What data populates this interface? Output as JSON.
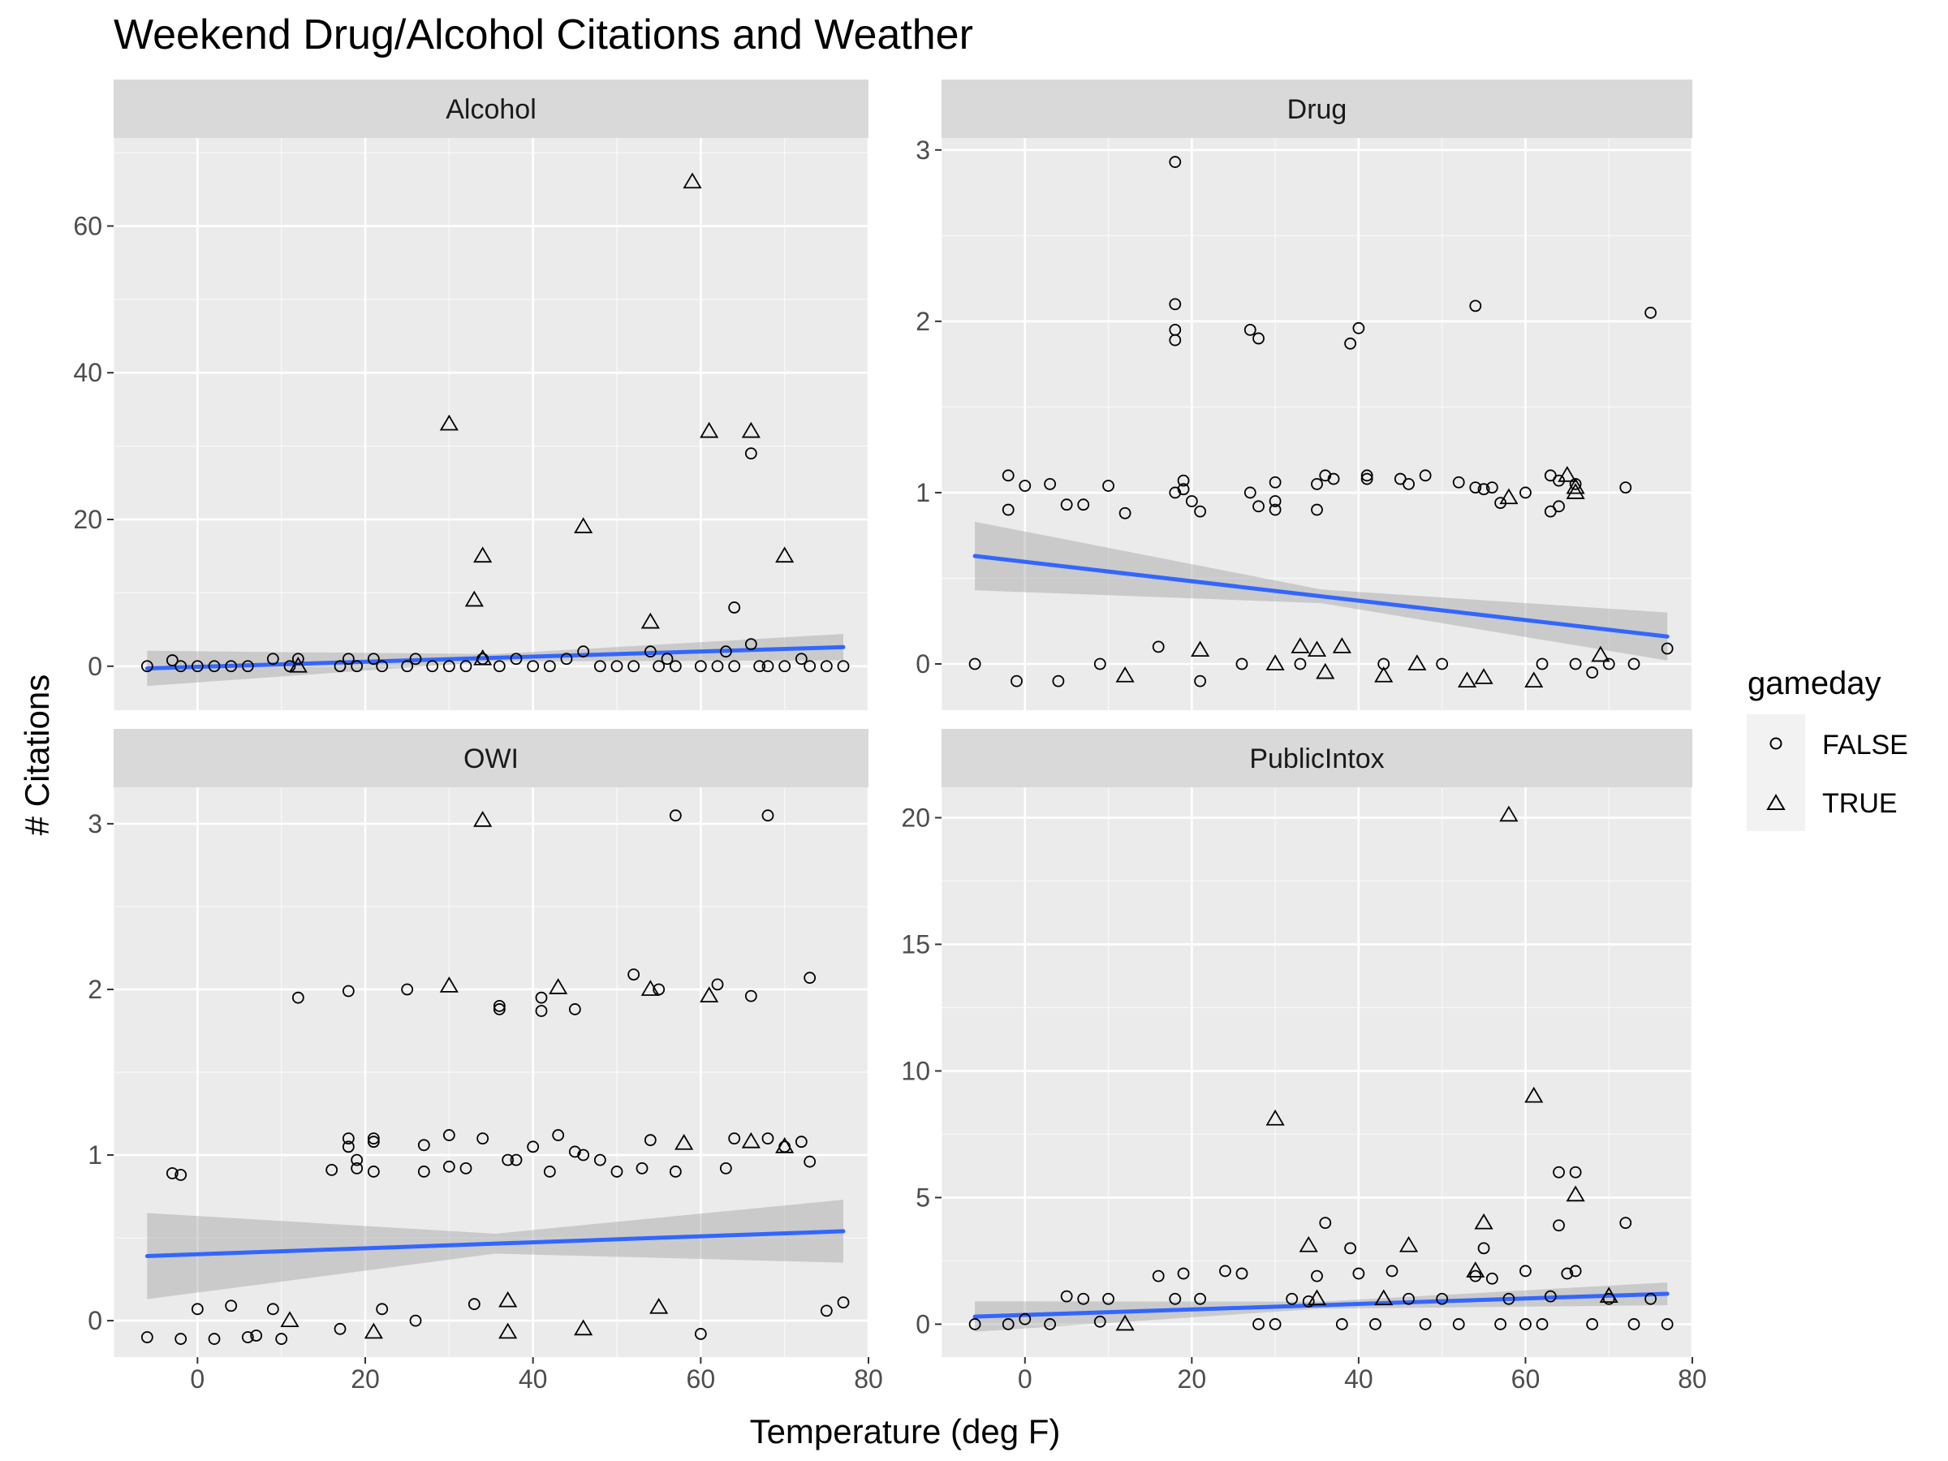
{
  "chart_data": {
    "type": "scatter",
    "title": "Weekend Drug/Alcohol Citations and Weather",
    "xlabel": "Temperature (deg F)",
    "ylabel": "# Citations",
    "xlim": [
      -10,
      80
    ],
    "x_ticks": [
      0,
      20,
      40,
      60,
      80
    ],
    "x_tick_labels": [
      "0",
      "20",
      "40",
      "60",
      "80"
    ],
    "legend": {
      "title": "gameday",
      "placement": "right",
      "entries": [
        {
          "label": "FALSE",
          "shape": "circle"
        },
        {
          "label": "TRUE",
          "shape": "triangle"
        }
      ]
    },
    "smooth_color": "#3366ff",
    "band_color": "#999999",
    "panel_background": "#ebebeb",
    "strip_background": "#d9d9d9",
    "facets": [
      {
        "label": "Alcohol",
        "ylim": [
          -6,
          72
        ],
        "y_ticks": [
          0,
          20,
          40,
          60
        ],
        "y_tick_labels": [
          "0",
          "20",
          "40",
          "60"
        ],
        "trend": {
          "x0": -6,
          "y0": -0.3,
          "x1": 77,
          "y1": 2.6,
          "band0": 2.4,
          "band1": 1.8,
          "band_mid": 0.5
        },
        "points_false": [
          [
            -6,
            0
          ],
          [
            -3,
            0.8
          ],
          [
            -2,
            0
          ],
          [
            0,
            0
          ],
          [
            2,
            0
          ],
          [
            4,
            0
          ],
          [
            6,
            0
          ],
          [
            9,
            1
          ],
          [
            11,
            0
          ],
          [
            12,
            1
          ],
          [
            17,
            0
          ],
          [
            18,
            1
          ],
          [
            19,
            0
          ],
          [
            21,
            1
          ],
          [
            22,
            0
          ],
          [
            25,
            0
          ],
          [
            26,
            1
          ],
          [
            28,
            0
          ],
          [
            30,
            0
          ],
          [
            32,
            0
          ],
          [
            34,
            1
          ],
          [
            36,
            0
          ],
          [
            38,
            1
          ],
          [
            40,
            0
          ],
          [
            42,
            0
          ],
          [
            44,
            1
          ],
          [
            46,
            2
          ],
          [
            48,
            0
          ],
          [
            50,
            0
          ],
          [
            52,
            0
          ],
          [
            54,
            2
          ],
          [
            55,
            0
          ],
          [
            56,
            1
          ],
          [
            57,
            0
          ],
          [
            60,
            0
          ],
          [
            62,
            0
          ],
          [
            63,
            2
          ],
          [
            64,
            0
          ],
          [
            64,
            8
          ],
          [
            66,
            29
          ],
          [
            66,
            3
          ],
          [
            67,
            0
          ],
          [
            68,
            0
          ],
          [
            70,
            0
          ],
          [
            72,
            1
          ],
          [
            73,
            0
          ],
          [
            75,
            0
          ],
          [
            77,
            0
          ]
        ],
        "points_true": [
          [
            12,
            0
          ],
          [
            30,
            33
          ],
          [
            33,
            9
          ],
          [
            34,
            15
          ],
          [
            34,
            1
          ],
          [
            46,
            19
          ],
          [
            54,
            6
          ],
          [
            59,
            66
          ],
          [
            61,
            32
          ],
          [
            66,
            32
          ],
          [
            70,
            15
          ]
        ]
      },
      {
        "label": "Drug",
        "ylim": [
          -0.27,
          3.07
        ],
        "y_ticks": [
          0,
          1,
          2,
          3
        ],
        "y_tick_labels": [
          "0",
          "1",
          "2",
          "3"
        ],
        "trend": {
          "x0": -6,
          "y0": 0.63,
          "x1": 77,
          "y1": 0.16,
          "band0": 0.2,
          "band1": 0.14,
          "band_mid": 0.04
        },
        "points_false": [
          [
            -6,
            0
          ],
          [
            -2,
            1.1
          ],
          [
            -2,
            0.9
          ],
          [
            -1,
            -0.1
          ],
          [
            0,
            1.04
          ],
          [
            3,
            1.05
          ],
          [
            4,
            -0.1
          ],
          [
            5,
            0.93
          ],
          [
            7,
            0.93
          ],
          [
            9,
            0
          ],
          [
            10,
            1.04
          ],
          [
            12,
            0.88
          ],
          [
            16,
            0.1
          ],
          [
            18,
            2.93
          ],
          [
            18,
            2.1
          ],
          [
            18,
            1.95
          ],
          [
            18,
            1.89
          ],
          [
            18,
            1.0
          ],
          [
            19,
            1.07
          ],
          [
            19,
            1.02
          ],
          [
            20,
            0.95
          ],
          [
            21,
            0.89
          ],
          [
            21,
            -0.1
          ],
          [
            26,
            0
          ],
          [
            27,
            1.95
          ],
          [
            27,
            1.0
          ],
          [
            28,
            1.9
          ],
          [
            28,
            0.92
          ],
          [
            30,
            1.06
          ],
          [
            30,
            0.95
          ],
          [
            30,
            0.9
          ],
          [
            33,
            0
          ],
          [
            35,
            1.05
          ],
          [
            35,
            0.9
          ],
          [
            36,
            1.1
          ],
          [
            37,
            1.08
          ],
          [
            39,
            1.87
          ],
          [
            40,
            1.96
          ],
          [
            41,
            1.1
          ],
          [
            41,
            1.08
          ],
          [
            43,
            0
          ],
          [
            45,
            1.08
          ],
          [
            46,
            1.05
          ],
          [
            48,
            1.1
          ],
          [
            50,
            0
          ],
          [
            52,
            1.06
          ],
          [
            54,
            2.09
          ],
          [
            54,
            1.03
          ],
          [
            55,
            1.02
          ],
          [
            56,
            1.03
          ],
          [
            57,
            0.94
          ],
          [
            60,
            1.0
          ],
          [
            62,
            0
          ],
          [
            63,
            1.1
          ],
          [
            63,
            0.89
          ],
          [
            64,
            1.07
          ],
          [
            64,
            0.92
          ],
          [
            66,
            1.05
          ],
          [
            66,
            0
          ],
          [
            68,
            -0.05
          ],
          [
            70,
            0
          ],
          [
            72,
            1.03
          ],
          [
            73,
            0
          ],
          [
            75,
            2.05
          ],
          [
            77,
            0.09
          ]
        ],
        "points_true": [
          [
            12,
            -0.07
          ],
          [
            21,
            0.08
          ],
          [
            30,
            0
          ],
          [
            33,
            0.1
          ],
          [
            35,
            0.08
          ],
          [
            36,
            -0.05
          ],
          [
            38,
            0.1
          ],
          [
            43,
            -0.07
          ],
          [
            47,
            0
          ],
          [
            53,
            -0.1
          ],
          [
            55,
            -0.08
          ],
          [
            58,
            0.97
          ],
          [
            61,
            -0.1
          ],
          [
            65,
            1.1
          ],
          [
            66,
            1.03
          ],
          [
            66,
            1.0
          ],
          [
            69,
            0.05
          ]
        ]
      },
      {
        "label": "OWI",
        "ylim": [
          -0.22,
          3.22
        ],
        "y_ticks": [
          0,
          1,
          2,
          3
        ],
        "y_tick_labels": [
          "0",
          "1",
          "2",
          "3"
        ],
        "trend": {
          "x0": -6,
          "y0": 0.39,
          "x1": 77,
          "y1": 0.54,
          "band0": 0.26,
          "band1": 0.19,
          "band_mid": 0.06
        },
        "points_false": [
          [
            -6,
            -0.1
          ],
          [
            -3,
            0.89
          ],
          [
            -2,
            0.88
          ],
          [
            -2,
            -0.11
          ],
          [
            0,
            0.07
          ],
          [
            2,
            -0.11
          ],
          [
            4,
            0.09
          ],
          [
            6,
            -0.1
          ],
          [
            7,
            -0.09
          ],
          [
            9,
            0.07
          ],
          [
            10,
            -0.11
          ],
          [
            12,
            1.95
          ],
          [
            16,
            0.91
          ],
          [
            17,
            -0.05
          ],
          [
            18,
            1.99
          ],
          [
            18,
            1.1
          ],
          [
            18,
            1.05
          ],
          [
            19,
            0.97
          ],
          [
            19,
            0.92
          ],
          [
            21,
            1.1
          ],
          [
            21,
            1.08
          ],
          [
            21,
            0.9
          ],
          [
            22,
            0.07
          ],
          [
            25,
            2.0
          ],
          [
            26,
            0
          ],
          [
            27,
            1.06
          ],
          [
            27,
            0.9
          ],
          [
            30,
            0.93
          ],
          [
            30,
            1.12
          ],
          [
            32,
            0.92
          ],
          [
            33,
            0.1
          ],
          [
            34,
            1.1
          ],
          [
            36,
            1.9
          ],
          [
            36,
            1.88
          ],
          [
            37,
            0.97
          ],
          [
            38,
            0.97
          ],
          [
            40,
            1.05
          ],
          [
            41,
            1.87
          ],
          [
            41,
            1.95
          ],
          [
            42,
            0.9
          ],
          [
            43,
            1.12
          ],
          [
            45,
            1.02
          ],
          [
            45,
            1.88
          ],
          [
            46,
            1.0
          ],
          [
            48,
            0.97
          ],
          [
            50,
            0.9
          ],
          [
            52,
            2.09
          ],
          [
            53,
            0.92
          ],
          [
            54,
            1.09
          ],
          [
            55,
            2.0
          ],
          [
            57,
            3.05
          ],
          [
            57,
            0.9
          ],
          [
            60,
            -0.08
          ],
          [
            62,
            2.03
          ],
          [
            63,
            0.92
          ],
          [
            64,
            1.1
          ],
          [
            66,
            1.96
          ],
          [
            68,
            1.1
          ],
          [
            68,
            3.05
          ],
          [
            70,
            1.05
          ],
          [
            72,
            1.08
          ],
          [
            73,
            2.07
          ],
          [
            73,
            0.96
          ],
          [
            75,
            0.06
          ],
          [
            77,
            0.11
          ]
        ],
        "points_true": [
          [
            11,
            0
          ],
          [
            21,
            -0.07
          ],
          [
            30,
            2.02
          ],
          [
            34,
            3.02
          ],
          [
            37,
            0.12
          ],
          [
            37,
            -0.07
          ],
          [
            43,
            2.01
          ],
          [
            46,
            -0.05
          ],
          [
            54,
            2.0
          ],
          [
            55,
            0.08
          ],
          [
            58,
            1.07
          ],
          [
            61,
            1.96
          ],
          [
            66,
            1.08
          ],
          [
            70,
            1.05
          ]
        ]
      },
      {
        "label": "PublicIntox",
        "ylim": [
          -1.3,
          21.2
        ],
        "y_ticks": [
          0,
          5,
          10,
          15,
          20
        ],
        "y_tick_labels": [
          "0",
          "5",
          "10",
          "15",
          "20"
        ],
        "trend": {
          "x0": -6,
          "y0": 0.3,
          "x1": 77,
          "y1": 1.2,
          "band0": 0.6,
          "band1": 0.45,
          "band_mid": 0.14
        },
        "points_false": [
          [
            -6,
            0
          ],
          [
            -2,
            0
          ],
          [
            0,
            0.2
          ],
          [
            3,
            0
          ],
          [
            5,
            1.1
          ],
          [
            7,
            1.0
          ],
          [
            9,
            0.1
          ],
          [
            10,
            1.0
          ],
          [
            16,
            1.9
          ],
          [
            18,
            1.0
          ],
          [
            19,
            2.0
          ],
          [
            21,
            1.0
          ],
          [
            24,
            2.1
          ],
          [
            26,
            2.0
          ],
          [
            28,
            0
          ],
          [
            30,
            0
          ],
          [
            32,
            1.0
          ],
          [
            34,
            0.9
          ],
          [
            35,
            1.9
          ],
          [
            36,
            4.0
          ],
          [
            38,
            0
          ],
          [
            39,
            3.0
          ],
          [
            40,
            2.0
          ],
          [
            42,
            0
          ],
          [
            44,
            2.1
          ],
          [
            46,
            1.0
          ],
          [
            48,
            0
          ],
          [
            50,
            1.0
          ],
          [
            52,
            0
          ],
          [
            54,
            1.9
          ],
          [
            55,
            3.0
          ],
          [
            56,
            1.8
          ],
          [
            57,
            0
          ],
          [
            58,
            1.0
          ],
          [
            60,
            2.1
          ],
          [
            60,
            0
          ],
          [
            62,
            0
          ],
          [
            63,
            1.1
          ],
          [
            64,
            6.0
          ],
          [
            64,
            3.9
          ],
          [
            65,
            2.0
          ],
          [
            66,
            6.0
          ],
          [
            66,
            2.1
          ],
          [
            68,
            0
          ],
          [
            70,
            1.0
          ],
          [
            72,
            4.0
          ],
          [
            73,
            0
          ],
          [
            75,
            1.0
          ],
          [
            77,
            0
          ]
        ],
        "points_true": [
          [
            12,
            0
          ],
          [
            30,
            8.1
          ],
          [
            34,
            3.1
          ],
          [
            35,
            1.0
          ],
          [
            43,
            1.0
          ],
          [
            46,
            3.1
          ],
          [
            54,
            2.1
          ],
          [
            55,
            4.0
          ],
          [
            58,
            20.1
          ],
          [
            61,
            9.0
          ],
          [
            66,
            5.1
          ],
          [
            70,
            1.1
          ]
        ]
      }
    ]
  }
}
